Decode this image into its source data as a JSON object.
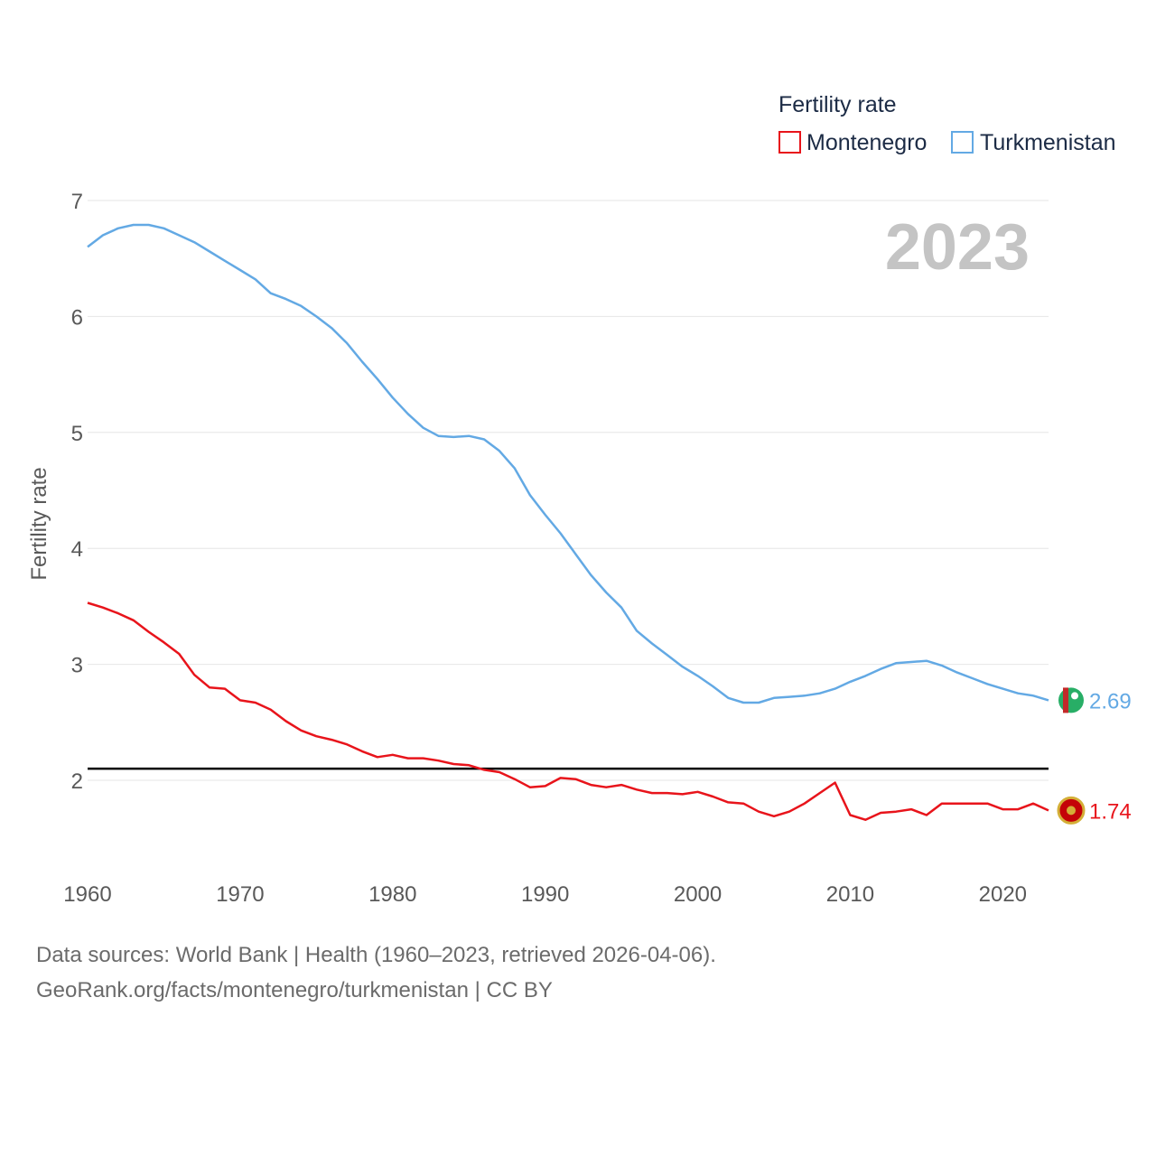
{
  "chart_data": {
    "type": "line",
    "title": "",
    "xlabel": "",
    "ylabel": "Fertility rate",
    "xlim": [
      1960,
      2023
    ],
    "ylim": [
      1.3,
      7.0
    ],
    "y_ticks": [
      2,
      3,
      4,
      5,
      6,
      7
    ],
    "x_ticks": [
      1960,
      1970,
      1980,
      1990,
      2000,
      2010,
      2020
    ],
    "grid": true,
    "legend": {
      "title": "Fertility rate",
      "placement": "top-right"
    },
    "year_label": "2023",
    "reference_line": {
      "value": 2.1,
      "color": "#000000"
    },
    "x": [
      1960,
      1961,
      1962,
      1963,
      1964,
      1965,
      1966,
      1967,
      1968,
      1969,
      1970,
      1971,
      1972,
      1973,
      1974,
      1975,
      1976,
      1977,
      1978,
      1979,
      1980,
      1981,
      1982,
      1983,
      1984,
      1985,
      1986,
      1987,
      1988,
      1989,
      1990,
      1991,
      1992,
      1993,
      1994,
      1995,
      1996,
      1997,
      1998,
      1999,
      2000,
      2001,
      2002,
      2003,
      2004,
      2005,
      2006,
      2007,
      2008,
      2009,
      2010,
      2011,
      2012,
      2013,
      2014,
      2015,
      2016,
      2017,
      2018,
      2019,
      2020,
      2021,
      2022,
      2023
    ],
    "series": [
      {
        "name": "Montenegro",
        "color": "#e8141b",
        "end_label": "1.74",
        "flag_icon": "montenegro-flag-icon",
        "values": [
          3.53,
          3.49,
          3.44,
          3.38,
          3.28,
          3.19,
          3.09,
          2.91,
          2.8,
          2.79,
          2.69,
          2.67,
          2.61,
          2.51,
          2.43,
          2.38,
          2.35,
          2.31,
          2.25,
          2.2,
          2.22,
          2.19,
          2.19,
          2.17,
          2.14,
          2.13,
          2.09,
          2.07,
          2.01,
          1.94,
          1.95,
          2.02,
          2.01,
          1.96,
          1.94,
          1.96,
          1.92,
          1.89,
          1.89,
          1.88,
          1.9,
          1.86,
          1.81,
          1.8,
          1.73,
          1.69,
          1.73,
          1.8,
          1.89,
          1.98,
          1.7,
          1.66,
          1.72,
          1.73,
          1.75,
          1.7,
          1.8,
          1.8,
          1.8,
          1.8,
          1.75,
          1.75,
          1.8,
          1.74
        ]
      },
      {
        "name": "Turkmenistan",
        "color": "#63a9e4",
        "end_label": "2.69",
        "flag_icon": "turkmenistan-flag-icon",
        "values": [
          6.6,
          6.7,
          6.76,
          6.79,
          6.79,
          6.76,
          6.7,
          6.64,
          6.56,
          6.48,
          6.4,
          6.32,
          6.2,
          6.15,
          6.09,
          6.0,
          5.9,
          5.77,
          5.61,
          5.46,
          5.3,
          5.16,
          5.04,
          4.97,
          4.96,
          4.97,
          4.94,
          4.84,
          4.69,
          4.46,
          4.29,
          4.13,
          3.95,
          3.77,
          3.62,
          3.49,
          3.29,
          3.18,
          3.08,
          2.98,
          2.9,
          2.81,
          2.71,
          2.67,
          2.67,
          2.71,
          2.72,
          2.73,
          2.75,
          2.79,
          2.85,
          2.9,
          2.96,
          3.01,
          3.02,
          3.03,
          2.99,
          2.93,
          2.88,
          2.83,
          2.79,
          2.75,
          2.73,
          2.69
        ]
      }
    ]
  },
  "footer": {
    "line1": "Data sources: World Bank | Health (1960–2023, retrieved 2026-04-06).",
    "line2": "GeoRank.org/facts/montenegro/turkmenistan | CC BY"
  }
}
